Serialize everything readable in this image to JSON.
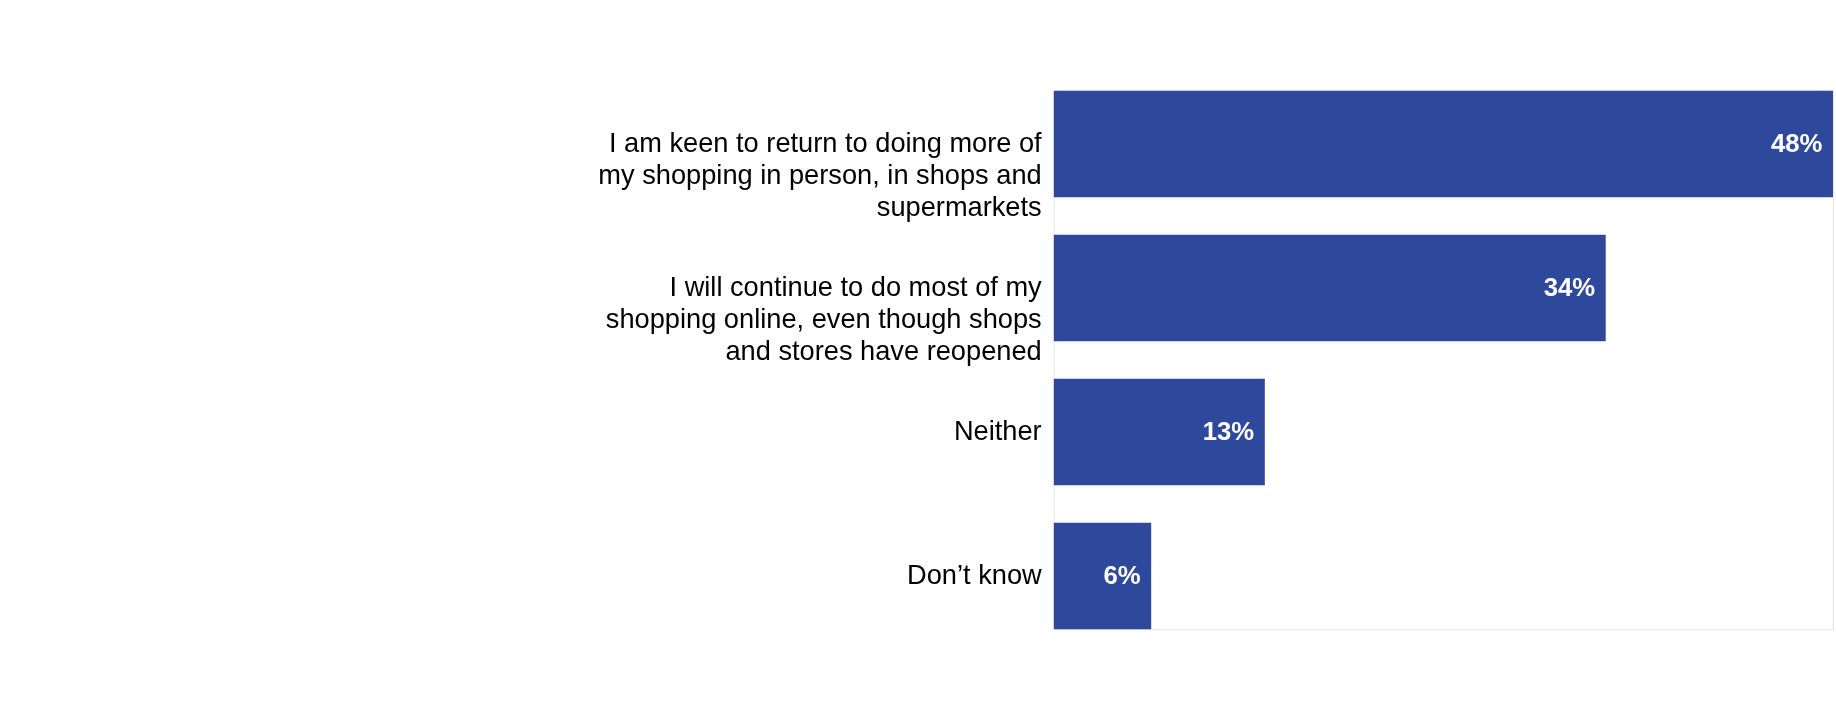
{
  "chart_data": {
    "type": "bar",
    "orientation": "horizontal",
    "categories": [
      "I am keen to return to doing more of my shopping in person, in shops and supermarkets",
      "I will continue to do most of my shopping online, even though shops and stores have reopened",
      "Neither",
      "Don’t know"
    ],
    "values": [
      48,
      34,
      13,
      6
    ],
    "value_labels": [
      "48%",
      "34%",
      "13%",
      "6%"
    ],
    "color": "#2e489c",
    "tick_labels": false
  }
}
